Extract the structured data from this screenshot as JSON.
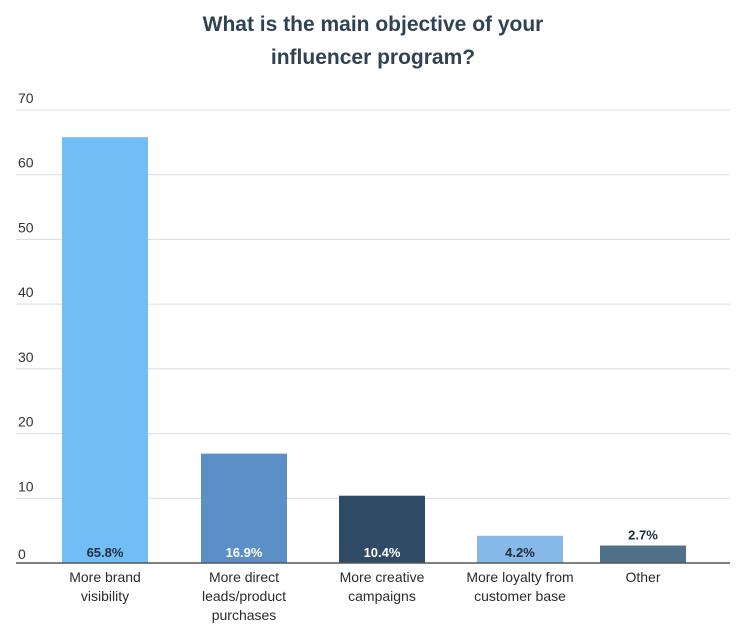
{
  "chart_data": {
    "type": "bar",
    "title_lines": [
      "What is the main objective of your",
      "influencer program?"
    ],
    "categories": [
      [
        "More brand",
        "visibility"
      ],
      [
        "More direct",
        "leads/product",
        "purchases"
      ],
      [
        "More creative",
        "campaigns"
      ],
      [
        "More loyalty from",
        "customer base"
      ],
      [
        "Other"
      ]
    ],
    "values": [
      65.8,
      16.9,
      10.4,
      4.2,
      2.7
    ],
    "value_labels": [
      "65.8%",
      "16.9%",
      "10.4%",
      "4.2%",
      "2.7%"
    ],
    "colors": [
      "#72bdf5",
      "#5b8fc6",
      "#2f4a64",
      "#86b8e8",
      "#4f7189"
    ],
    "label_colors": [
      "#1f2d3a",
      "#ffffff",
      "#ffffff",
      "#1f2d3a",
      "#1f2d3a"
    ],
    "yticks": [
      0,
      10,
      20,
      30,
      40,
      50,
      60,
      70
    ],
    "ylim": [
      0,
      70
    ],
    "grid": true,
    "legend": "none"
  }
}
